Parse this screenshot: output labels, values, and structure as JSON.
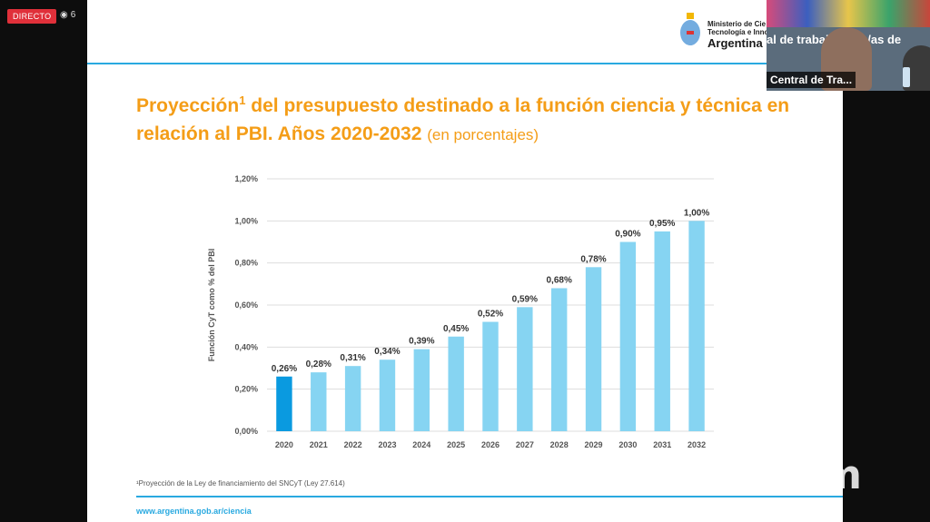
{
  "stream": {
    "live_label": "DIRECTO",
    "viewer_count": "6"
  },
  "header": {
    "ministry_line1": "Ministerio de Cie",
    "ministry_line2": "Tecnología e Inno",
    "country": "Argentina"
  },
  "slide": {
    "title_main": "Proyección",
    "title_sup": "1",
    "title_rest": " del presupuesto destinado a la función ciencia y técnica en relación al PBI. Años 2020-2032 ",
    "title_sub": "(en porcentajes)",
    "footnote": "¹Proyección de la Ley de financiamiento del SNCyT (Ley 27.614)",
    "footer_url": "www.argentina.gob.ar/ciencia"
  },
  "webcam": {
    "banner": "al de trabajadores/as de",
    "participant_name": "Central de Tra..."
  },
  "zoom_watermark": "zoom",
  "chart_data": {
    "type": "bar",
    "categories": [
      "2020",
      "2021",
      "2022",
      "2023",
      "2024",
      "2025",
      "2026",
      "2027",
      "2028",
      "2029",
      "2030",
      "2031",
      "2032"
    ],
    "values": [
      0.26,
      0.28,
      0.31,
      0.34,
      0.39,
      0.45,
      0.52,
      0.59,
      0.68,
      0.78,
      0.9,
      0.95,
      1.0
    ],
    "data_labels": [
      "0,26%",
      "0,28%",
      "0,31%",
      "0,34%",
      "0,39%",
      "0,45%",
      "0,52%",
      "0,59%",
      "0,68%",
      "0,78%",
      "0,90%",
      "0,95%",
      "1,00%"
    ],
    "ylabel": "Función CyT como % del PBI",
    "ylim": [
      0,
      1.2
    ],
    "yticks": [
      0,
      0.2,
      0.4,
      0.6,
      0.8,
      1.0,
      1.2
    ],
    "ytick_labels": [
      "0,00%",
      "0,20%",
      "0,40%",
      "0,60%",
      "0,80%",
      "1,00%",
      "1,20%"
    ],
    "grid": true,
    "colors": {
      "first_bar": "#0a9ae0",
      "other_bars": "#86d4f2",
      "grid": "#dddddd"
    }
  }
}
